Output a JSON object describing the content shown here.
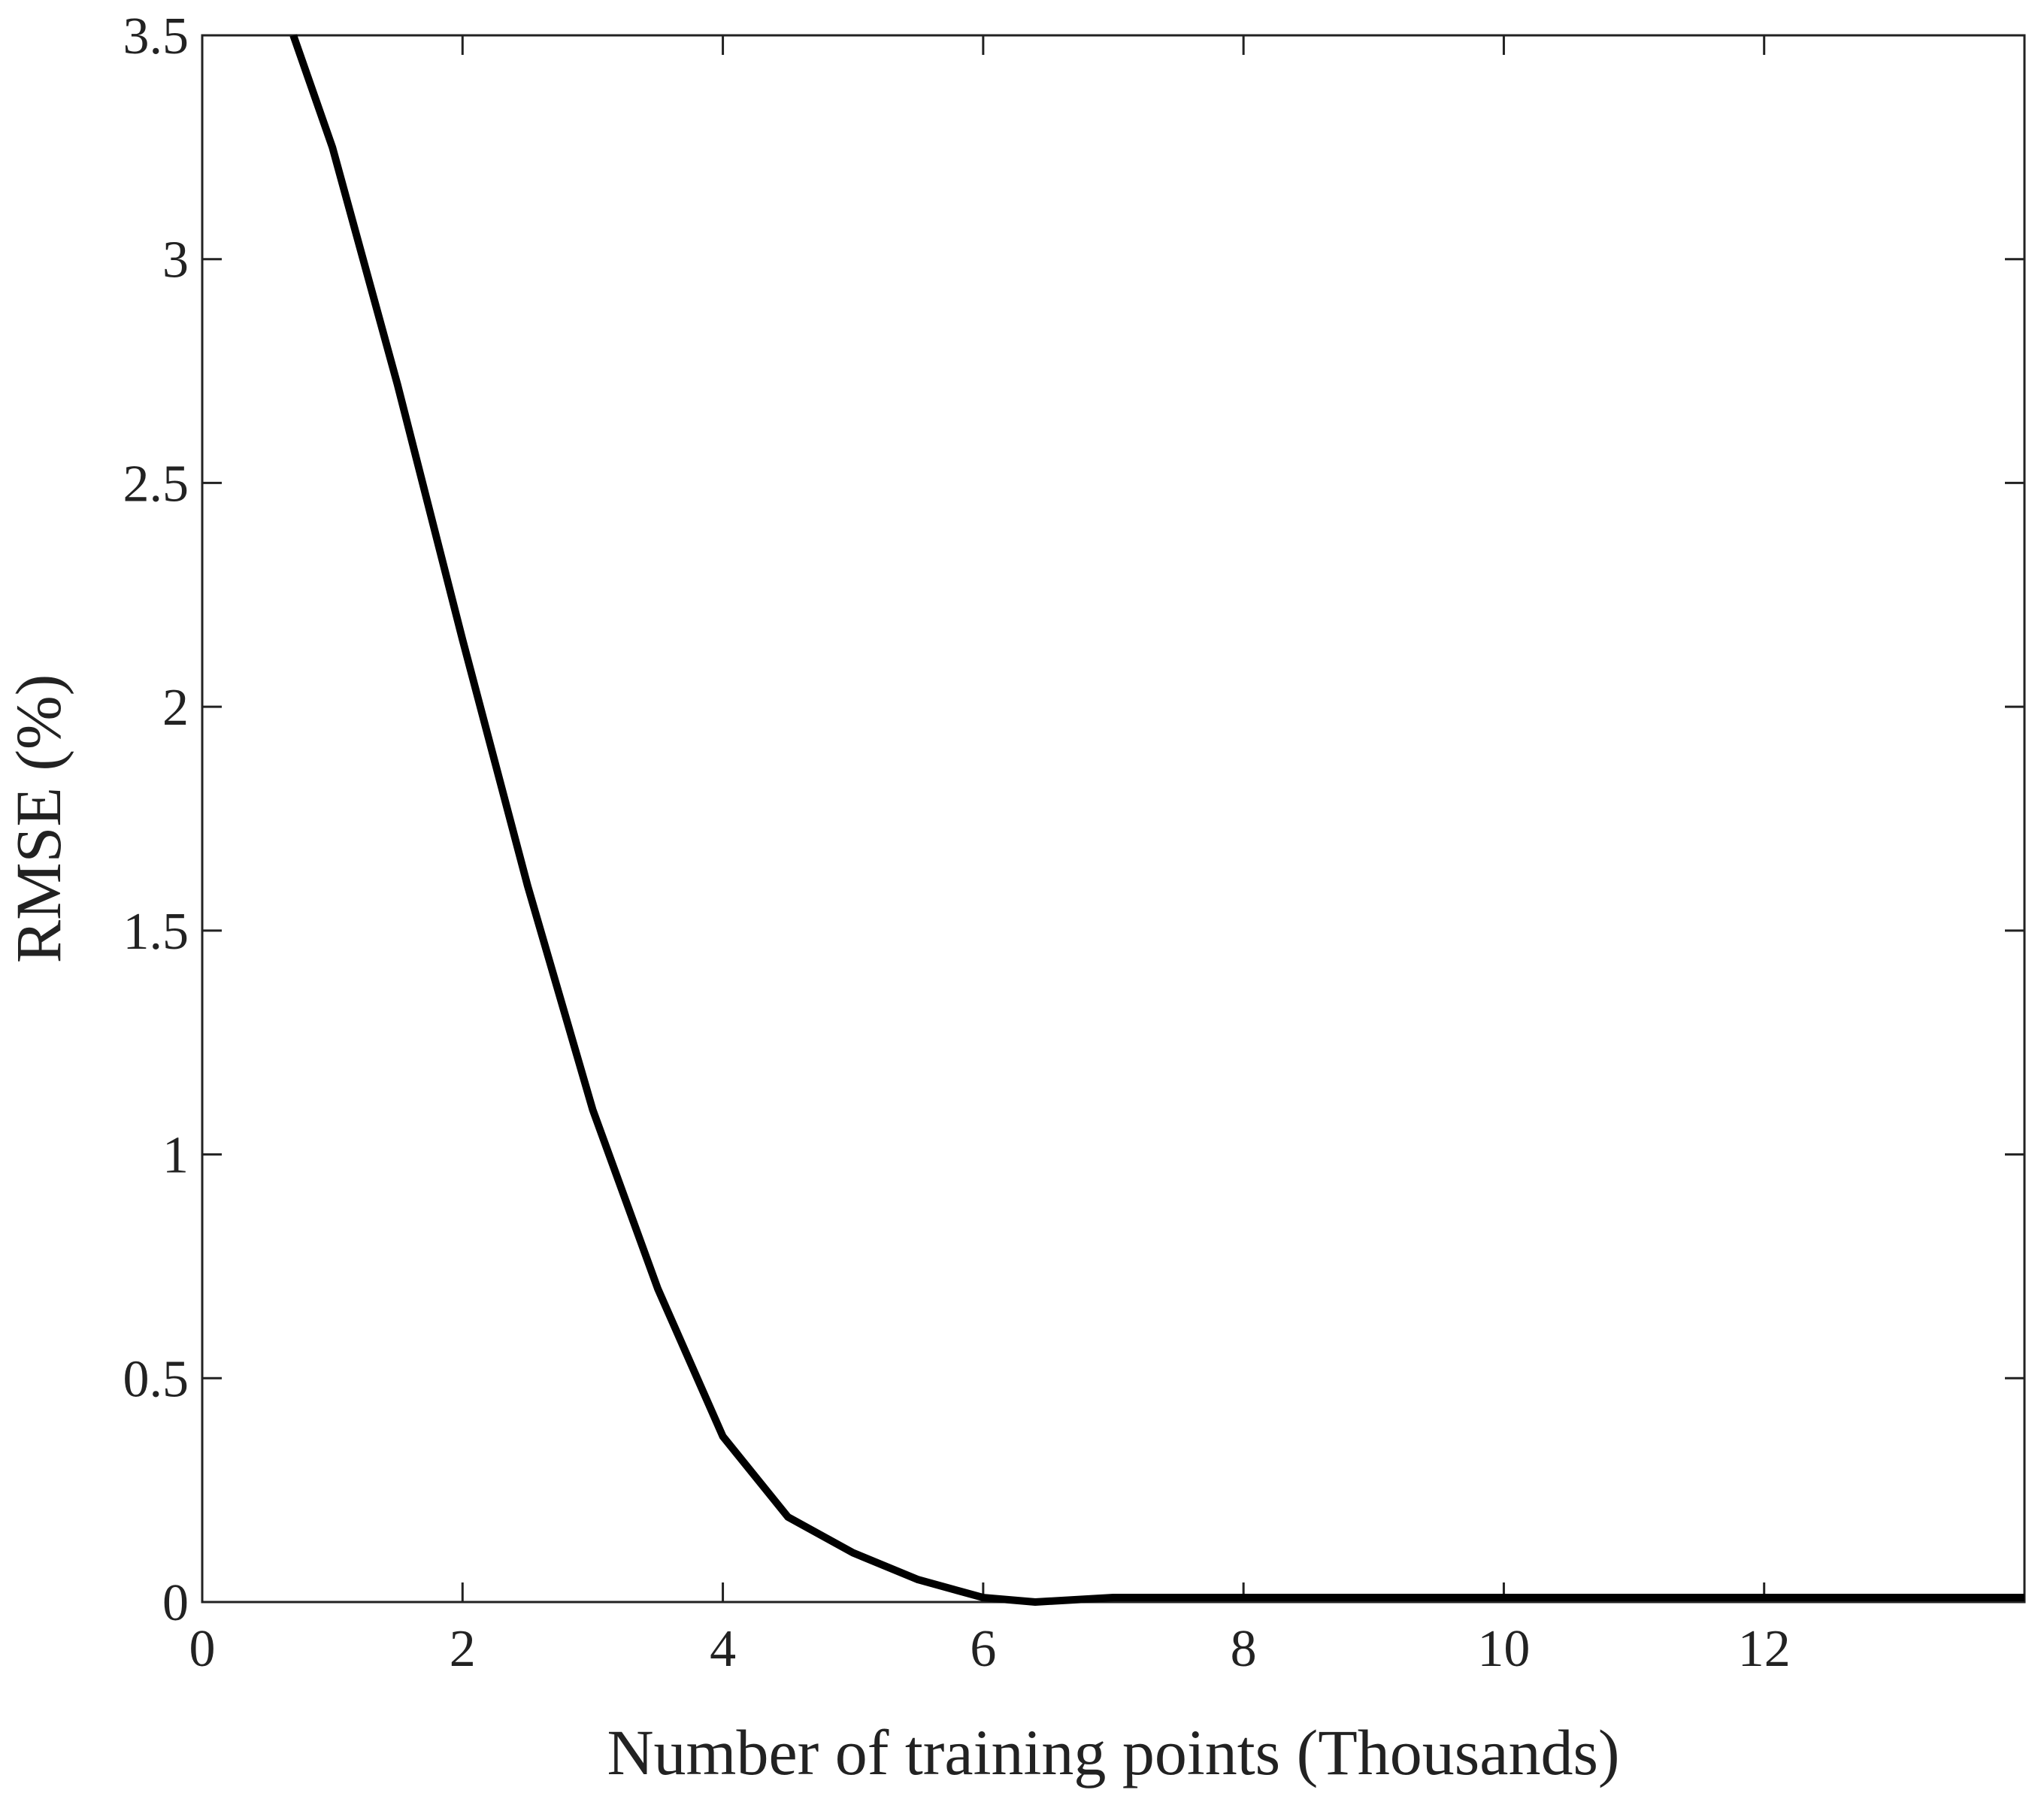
{
  "chart_data": {
    "type": "line",
    "x_label": "Number of training points (Thousands)",
    "y_label": "RMSE (%)",
    "x": [
      0.7,
      1.0,
      1.5,
      2.0,
      2.5,
      3.0,
      3.5,
      4.0,
      4.5,
      5.0,
      5.5,
      6.0,
      6.4,
      7.0,
      7.5,
      8.0,
      10.0,
      12.0,
      14.0
    ],
    "series": [
      {
        "color": "#000000",
        "values": [
          3.5,
          3.25,
          2.72,
          2.15,
          1.6,
          1.1,
          0.7,
          0.37,
          0.19,
          0.11,
          0.05,
          0.01,
          0.0,
          0.01,
          0.01,
          0.01,
          0.01,
          0.01,
          0.01
        ]
      }
    ],
    "xlim": [
      0,
      14
    ],
    "xticks": [
      0,
      2,
      4,
      6,
      8,
      10,
      12
    ],
    "ylim": [
      0,
      3.5
    ],
    "yticks": [
      0,
      0.5,
      1,
      1.5,
      2,
      2.5,
      3,
      3.5
    ]
  }
}
